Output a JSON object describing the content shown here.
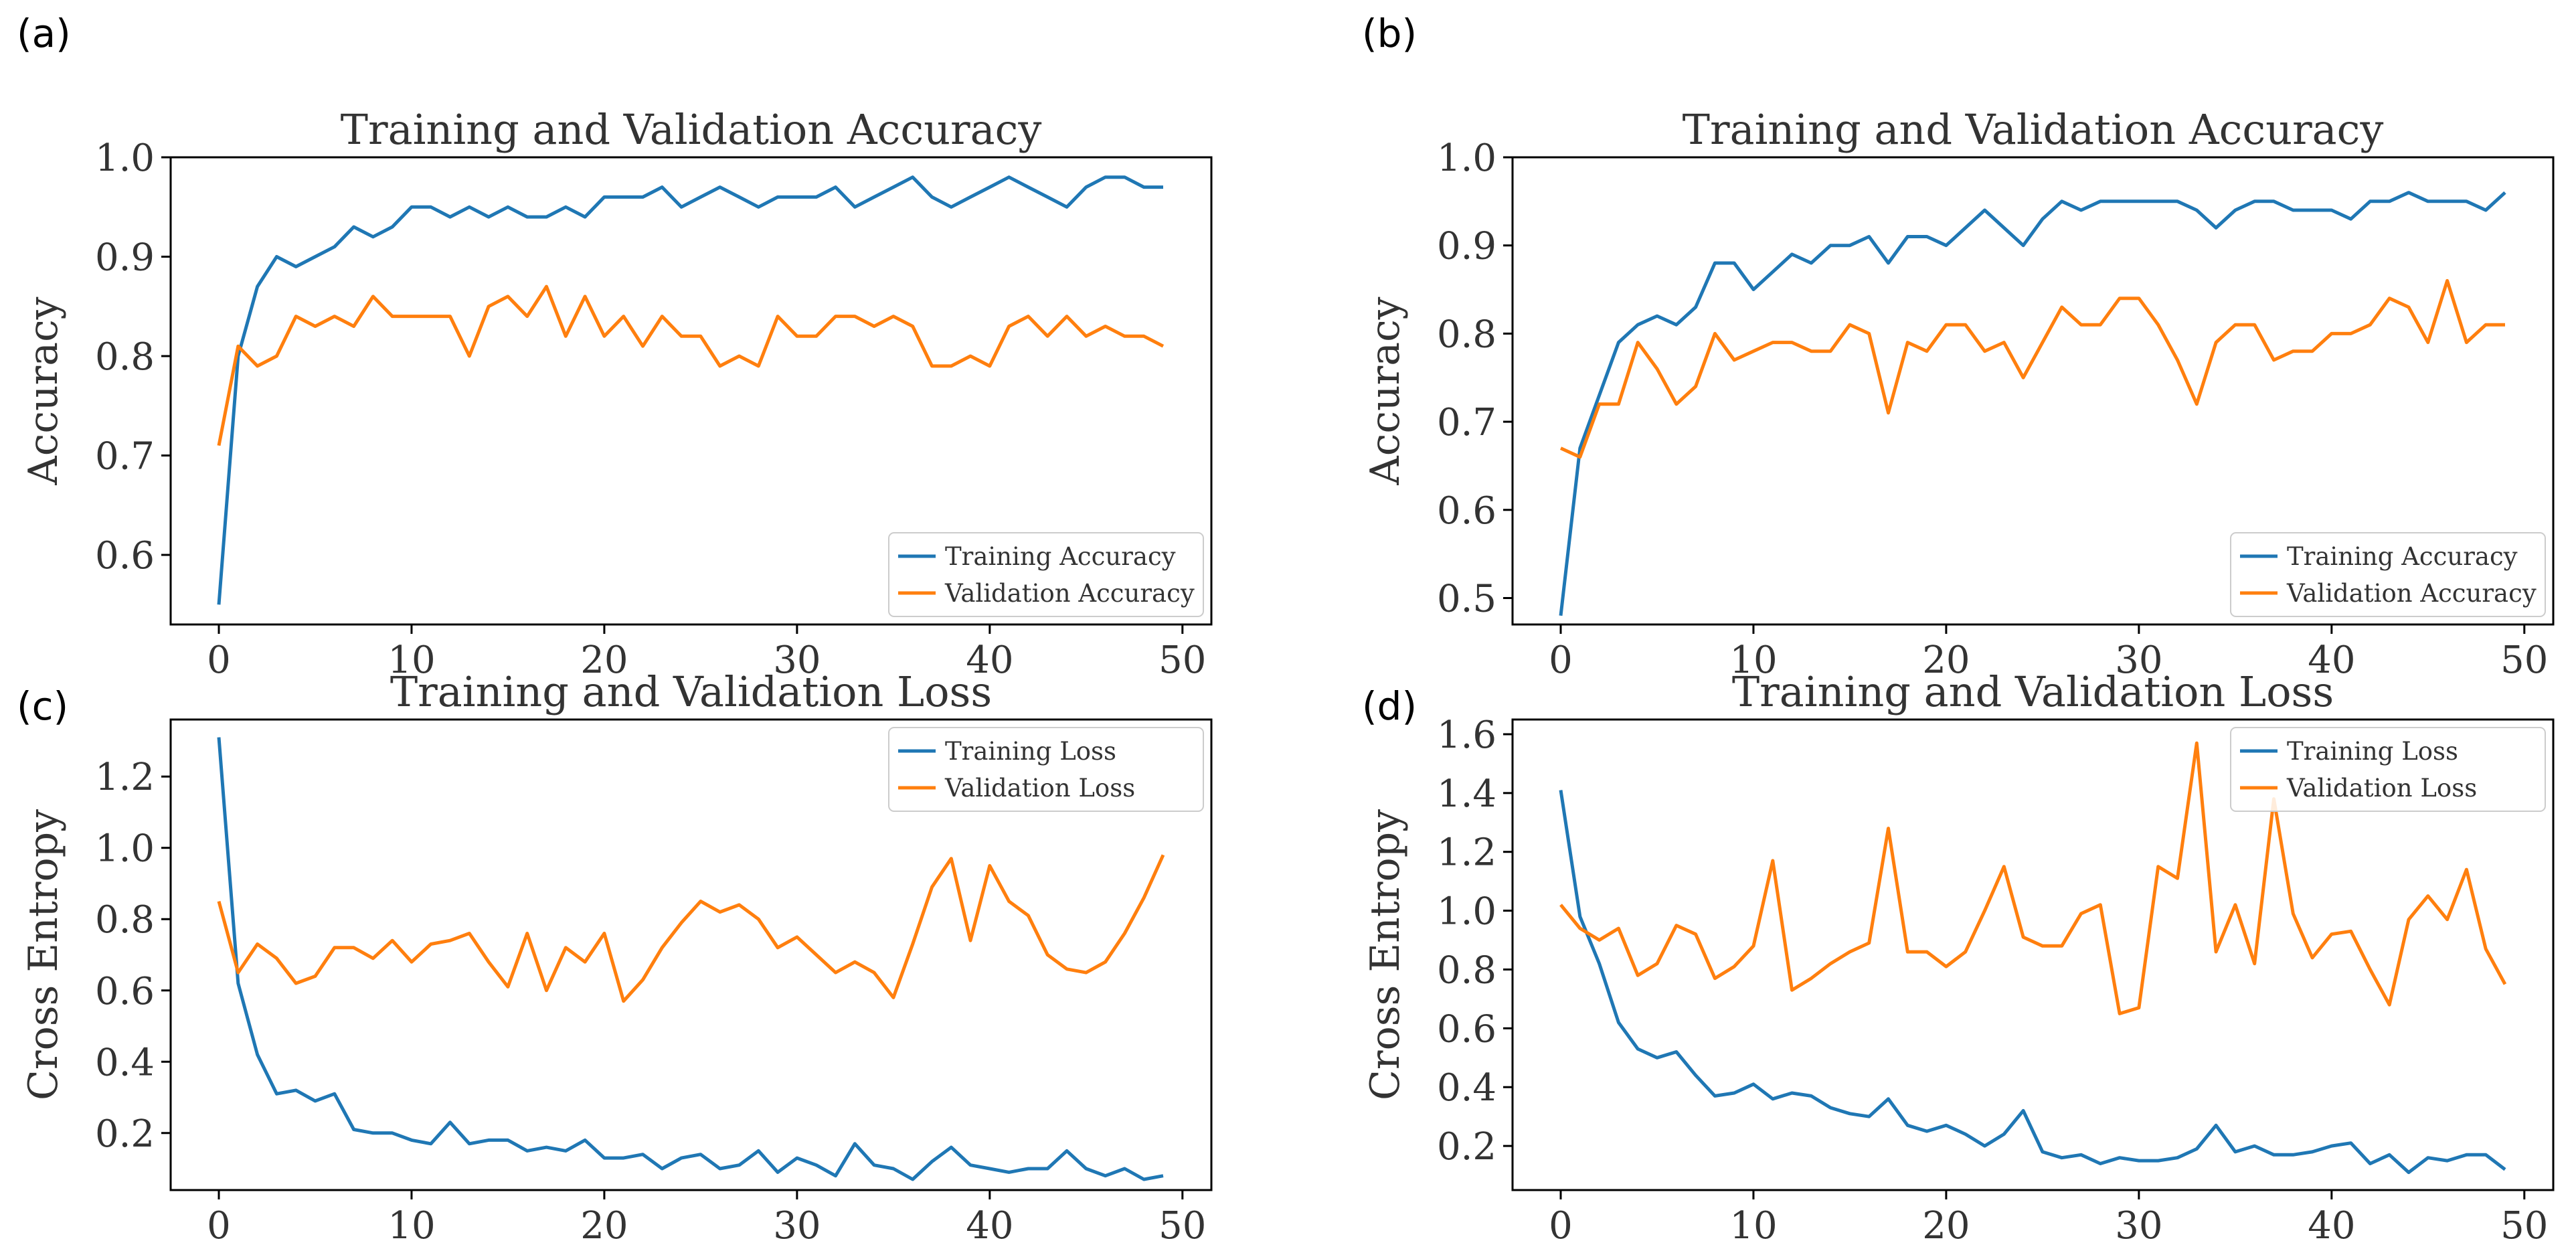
{
  "colors": {
    "training": "#1f77b4",
    "validation": "#ff7f0e",
    "axis": "#000000",
    "background": "#ffffff"
  },
  "chart_data": [
    {
      "panel": "(a)",
      "type": "line",
      "title": "Training and Validation Accuracy",
      "xlabel": "",
      "ylabel": "Accuracy",
      "xlim": [
        -2.5,
        51.5
      ],
      "ylim": [
        0.53,
        1.0
      ],
      "xticks": [
        0,
        10,
        20,
        30,
        40,
        50
      ],
      "yticks": [
        0.6,
        0.7,
        0.8,
        0.9,
        1.0
      ],
      "ytick_labels": [
        "0.6",
        "0.7",
        "0.8",
        "0.9",
        "1.0"
      ],
      "grid": false,
      "legend_position": "bottom-right",
      "series": [
        {
          "name": "Training Accuracy",
          "color": "#1f77b4",
          "values": [
            0.55,
            0.8,
            0.87,
            0.9,
            0.89,
            0.9,
            0.91,
            0.93,
            0.92,
            0.93,
            0.95,
            0.95,
            0.94,
            0.95,
            0.94,
            0.95,
            0.94,
            0.94,
            0.95,
            0.94,
            0.96,
            0.96,
            0.96,
            0.97,
            0.95,
            0.96,
            0.97,
            0.96,
            0.95,
            0.96,
            0.96,
            0.96,
            0.97,
            0.95,
            0.96,
            0.97,
            0.98,
            0.96,
            0.95,
            0.96,
            0.97,
            0.98,
            0.97,
            0.96,
            0.95,
            0.97,
            0.98,
            0.98,
            0.97,
            0.97
          ]
        },
        {
          "name": "Validation Accuracy",
          "color": "#ff7f0e",
          "values": [
            0.71,
            0.81,
            0.79,
            0.8,
            0.84,
            0.83,
            0.84,
            0.83,
            0.86,
            0.84,
            0.84,
            0.84,
            0.84,
            0.8,
            0.85,
            0.86,
            0.84,
            0.87,
            0.82,
            0.86,
            0.82,
            0.84,
            0.81,
            0.84,
            0.82,
            0.82,
            0.79,
            0.8,
            0.79,
            0.84,
            0.82,
            0.82,
            0.84,
            0.84,
            0.83,
            0.84,
            0.83,
            0.79,
            0.79,
            0.8,
            0.79,
            0.83,
            0.84,
            0.82,
            0.84,
            0.82,
            0.83,
            0.82,
            0.82,
            0.81
          ]
        }
      ]
    },
    {
      "panel": "(b)",
      "type": "line",
      "title": "Training and Validation Accuracy",
      "xlabel": "",
      "ylabel": "Accuracy",
      "xlim": [
        -2.5,
        51.5
      ],
      "ylim": [
        0.47,
        1.0
      ],
      "xticks": [
        0,
        10,
        20,
        30,
        40,
        50
      ],
      "yticks": [
        0.5,
        0.6,
        0.7,
        0.8,
        0.9,
        1.0
      ],
      "ytick_labels": [
        "0.5",
        "0.6",
        "0.7",
        "0.8",
        "0.9",
        "1.0"
      ],
      "grid": false,
      "legend_position": "bottom-right",
      "series": [
        {
          "name": "Training Accuracy",
          "color": "#1f77b4",
          "values": [
            0.48,
            0.67,
            0.73,
            0.79,
            0.81,
            0.82,
            0.81,
            0.83,
            0.88,
            0.88,
            0.85,
            0.87,
            0.89,
            0.88,
            0.9,
            0.9,
            0.91,
            0.88,
            0.91,
            0.91,
            0.9,
            0.92,
            0.94,
            0.92,
            0.9,
            0.93,
            0.95,
            0.94,
            0.95,
            0.95,
            0.95,
            0.95,
            0.95,
            0.94,
            0.92,
            0.94,
            0.95,
            0.95,
            0.94,
            0.94,
            0.94,
            0.93,
            0.95,
            0.95,
            0.96,
            0.95,
            0.95,
            0.95,
            0.94,
            0.96
          ]
        },
        {
          "name": "Validation Accuracy",
          "color": "#ff7f0e",
          "values": [
            0.67,
            0.66,
            0.72,
            0.72,
            0.79,
            0.76,
            0.72,
            0.74,
            0.8,
            0.77,
            0.78,
            0.79,
            0.79,
            0.78,
            0.78,
            0.81,
            0.8,
            0.71,
            0.79,
            0.78,
            0.81,
            0.81,
            0.78,
            0.79,
            0.75,
            0.79,
            0.83,
            0.81,
            0.81,
            0.84,
            0.84,
            0.81,
            0.77,
            0.72,
            0.79,
            0.81,
            0.81,
            0.77,
            0.78,
            0.78,
            0.8,
            0.8,
            0.81,
            0.84,
            0.83,
            0.79,
            0.86,
            0.79,
            0.81,
            0.81
          ]
        }
      ]
    },
    {
      "panel": "(c)",
      "type": "line",
      "title": "Training and Validation Loss",
      "xlabel": "",
      "ylabel": "Cross Entropy",
      "xlim": [
        -2.5,
        51.5
      ],
      "ylim": [
        0.04,
        1.36
      ],
      "xticks": [
        0,
        10,
        20,
        30,
        40,
        50
      ],
      "yticks": [
        0.2,
        0.4,
        0.6,
        0.8,
        1.0,
        1.2
      ],
      "ytick_labels": [
        "0.2",
        "0.4",
        "0.6",
        "0.8",
        "1.0",
        "1.2"
      ],
      "grid": false,
      "legend_position": "top-right",
      "series": [
        {
          "name": "Training Loss",
          "color": "#1f77b4",
          "values": [
            1.31,
            0.62,
            0.42,
            0.31,
            0.32,
            0.29,
            0.31,
            0.21,
            0.2,
            0.2,
            0.18,
            0.17,
            0.23,
            0.17,
            0.18,
            0.18,
            0.15,
            0.16,
            0.15,
            0.18,
            0.13,
            0.13,
            0.14,
            0.1,
            0.13,
            0.14,
            0.1,
            0.11,
            0.15,
            0.09,
            0.13,
            0.11,
            0.08,
            0.17,
            0.11,
            0.1,
            0.07,
            0.12,
            0.16,
            0.11,
            0.1,
            0.09,
            0.1,
            0.1,
            0.15,
            0.1,
            0.08,
            0.1,
            0.07,
            0.08
          ]
        },
        {
          "name": "Validation Loss",
          "color": "#ff7f0e",
          "values": [
            0.85,
            0.65,
            0.73,
            0.69,
            0.62,
            0.64,
            0.72,
            0.72,
            0.69,
            0.74,
            0.68,
            0.73,
            0.74,
            0.76,
            0.68,
            0.61,
            0.76,
            0.6,
            0.72,
            0.68,
            0.76,
            0.57,
            0.63,
            0.72,
            0.79,
            0.85,
            0.82,
            0.84,
            0.8,
            0.72,
            0.75,
            0.7,
            0.65,
            0.68,
            0.65,
            0.58,
            0.73,
            0.89,
            0.97,
            0.74,
            0.95,
            0.85,
            0.81,
            0.7,
            0.66,
            0.65,
            0.68,
            0.76,
            0.86,
            0.98
          ]
        }
      ]
    },
    {
      "panel": "(d)",
      "type": "line",
      "title": "Training and Validation Loss",
      "xlabel": "",
      "ylabel": "Cross Entropy",
      "xlim": [
        -2.5,
        51.5
      ],
      "ylim": [
        0.05,
        1.65
      ],
      "xticks": [
        0,
        10,
        20,
        30,
        40,
        50
      ],
      "yticks": [
        0.2,
        0.4,
        0.6,
        0.8,
        1.0,
        1.2,
        1.4,
        1.6
      ],
      "ytick_labels": [
        "0.2",
        "0.4",
        "0.6",
        "0.8",
        "1.0",
        "1.2",
        "1.4",
        "1.6"
      ],
      "grid": false,
      "legend_position": "top-right",
      "series": [
        {
          "name": "Training Loss",
          "color": "#1f77b4",
          "values": [
            1.41,
            0.98,
            0.82,
            0.62,
            0.53,
            0.5,
            0.52,
            0.44,
            0.37,
            0.38,
            0.41,
            0.36,
            0.38,
            0.37,
            0.33,
            0.31,
            0.3,
            0.36,
            0.27,
            0.25,
            0.27,
            0.24,
            0.2,
            0.24,
            0.32,
            0.18,
            0.16,
            0.17,
            0.14,
            0.16,
            0.15,
            0.15,
            0.16,
            0.19,
            0.27,
            0.18,
            0.2,
            0.17,
            0.17,
            0.18,
            0.2,
            0.21,
            0.14,
            0.17,
            0.11,
            0.16,
            0.15,
            0.17,
            0.17,
            0.12
          ]
        },
        {
          "name": "Validation Loss",
          "color": "#ff7f0e",
          "values": [
            1.02,
            0.94,
            0.9,
            0.94,
            0.78,
            0.82,
            0.95,
            0.92,
            0.77,
            0.81,
            0.88,
            1.17,
            0.73,
            0.77,
            0.82,
            0.86,
            0.89,
            1.28,
            0.86,
            0.86,
            0.81,
            0.86,
            1.0,
            1.15,
            0.91,
            0.88,
            0.88,
            0.99,
            1.02,
            0.65,
            0.67,
            1.15,
            1.11,
            1.57,
            0.86,
            1.02,
            0.82,
            1.38,
            0.99,
            0.84,
            0.92,
            0.93,
            0.8,
            0.68,
            0.97,
            1.05,
            0.97,
            1.14,
            0.87,
            0.75
          ]
        }
      ]
    }
  ]
}
